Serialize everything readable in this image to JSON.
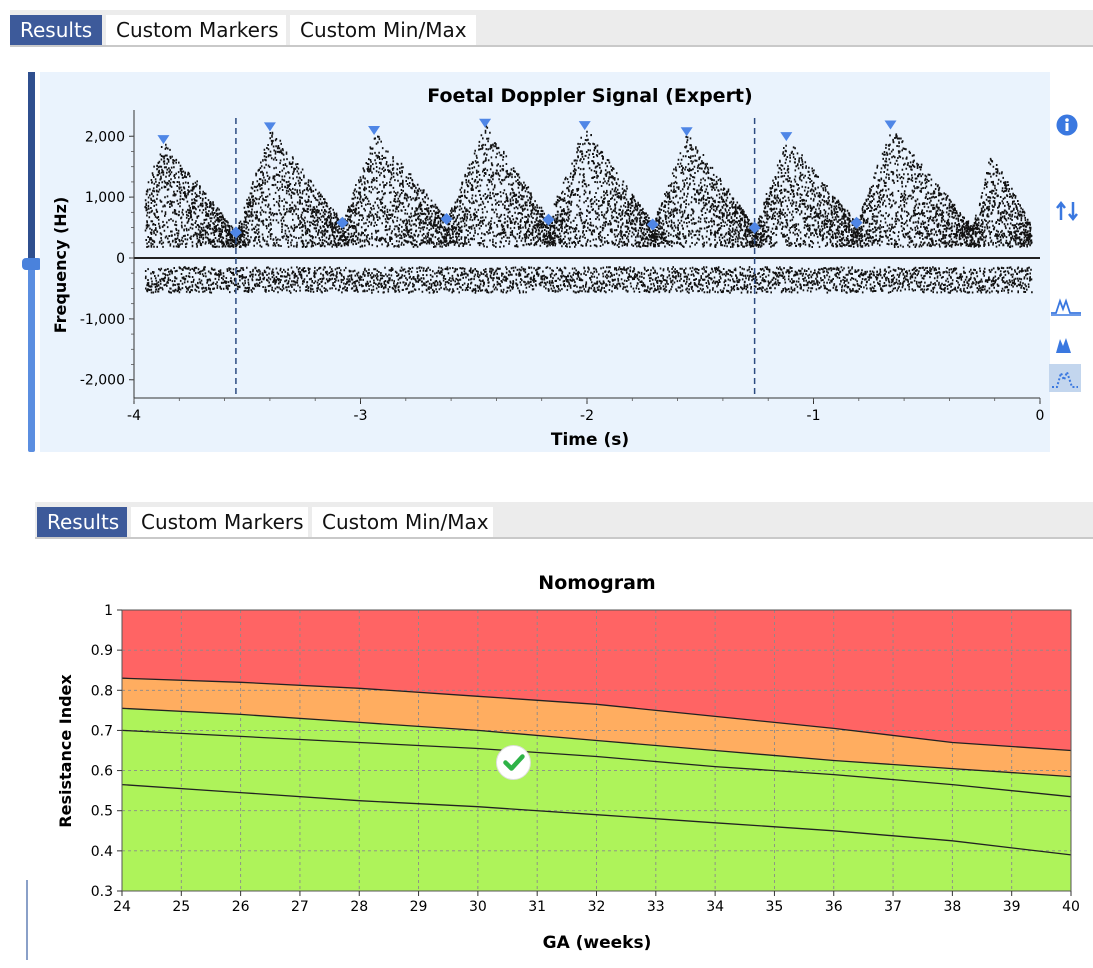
{
  "top_panel": {
    "tabs": [
      {
        "label": "Results",
        "active": true
      },
      {
        "label": "Custom Markers",
        "active": false
      },
      {
        "label": "Custom Min/Max",
        "active": false
      }
    ],
    "side_icons": [
      "info-icon",
      "swap-vertical-icon",
      "waveform-outline-icon",
      "waveform-filled-icon",
      "waveform-dots-icon"
    ]
  },
  "bottom_panel": {
    "tabs": [
      {
        "label": "Results",
        "active": true
      },
      {
        "label": "Custom Markers",
        "active": false
      },
      {
        "label": "Custom Min/Max",
        "active": false
      }
    ]
  },
  "colors": {
    "accent": "#3d5a9a",
    "panel_bg": "#eaf3fd",
    "marker": "#4f86e6",
    "zone_red": "#ff6464",
    "zone_orange": "#ffad60",
    "zone_green": "#aef35a",
    "ok": "#2fb347"
  },
  "chart_data": [
    {
      "type": "scatter",
      "title": "Foetal Doppler Signal (Expert)",
      "xlabel": "Time (s)",
      "ylabel": "Frequency (Hz)",
      "xlim": [
        -4,
        0
      ],
      "ylim": [
        -2300,
        2300
      ],
      "x_ticks": [
        -4,
        -3,
        -2,
        -1,
        0
      ],
      "y_ticks": [
        -2000,
        -1000,
        0,
        1000,
        2000
      ],
      "x_tick_labels": [
        "-4",
        "-3",
        "-2",
        "-1",
        "0"
      ],
      "y_tick_labels": [
        "-2,000",
        "-1,000",
        "0",
        "1,000",
        "2,000"
      ],
      "cycle_boundaries": [
        -3.55,
        -1.26
      ],
      "peak_markers": [
        {
          "x": -3.87,
          "y": 1920
        },
        {
          "x": -3.4,
          "y": 2130
        },
        {
          "x": -2.94,
          "y": 2070
        },
        {
          "x": -2.45,
          "y": 2190
        },
        {
          "x": -2.01,
          "y": 2150
        },
        {
          "x": -1.56,
          "y": 2050
        },
        {
          "x": -1.12,
          "y": 1970
        },
        {
          "x": -0.66,
          "y": 2160
        }
      ],
      "trough_markers": [
        {
          "x": -3.55,
          "y": 420
        },
        {
          "x": -3.08,
          "y": 580
        },
        {
          "x": -2.62,
          "y": 640
        },
        {
          "x": -2.17,
          "y": 630
        },
        {
          "x": -1.71,
          "y": 550
        },
        {
          "x": -1.26,
          "y": 500
        },
        {
          "x": -0.81,
          "y": 580
        }
      ]
    },
    {
      "type": "area",
      "title": "Nomogram",
      "xlabel": "GA (weeks)",
      "ylabel": "Resistance Index",
      "xlim": [
        24,
        40
      ],
      "ylim": [
        0.3,
        1.0
      ],
      "x_ticks": [
        24,
        25,
        26,
        27,
        28,
        29,
        30,
        31,
        32,
        33,
        34,
        35,
        36,
        37,
        38,
        39,
        40
      ],
      "y_ticks": [
        0.3,
        0.4,
        0.5,
        0.6,
        0.7,
        0.8,
        0.9,
        1.0
      ],
      "x_tick_labels": [
        "24",
        "25",
        "26",
        "27",
        "28",
        "29",
        "30",
        "31",
        "32",
        "33",
        "34",
        "35",
        "36",
        "37",
        "38",
        "39",
        "40"
      ],
      "y_tick_labels": [
        "0.3",
        "0.4",
        "0.5",
        "0.6",
        "0.7",
        "0.8",
        "0.9",
        "1"
      ],
      "x": [
        24,
        26,
        28,
        30,
        32,
        34,
        36,
        38,
        40
      ],
      "series": [
        {
          "values": [
            0.83,
            0.82,
            0.805,
            0.785,
            0.765,
            0.735,
            0.705,
            0.67,
            0.65
          ]
        },
        {
          "values": [
            0.755,
            0.74,
            0.72,
            0.7,
            0.675,
            0.65,
            0.625,
            0.605,
            0.585
          ]
        },
        {
          "values": [
            0.7,
            0.685,
            0.67,
            0.655,
            0.635,
            0.61,
            0.59,
            0.565,
            0.535
          ]
        },
        {
          "values": [
            0.565,
            0.545,
            0.525,
            0.51,
            0.49,
            0.47,
            0.45,
            0.425,
            0.39
          ]
        }
      ],
      "measurement": {
        "x": 30.6,
        "y": 0.62
      }
    }
  ]
}
